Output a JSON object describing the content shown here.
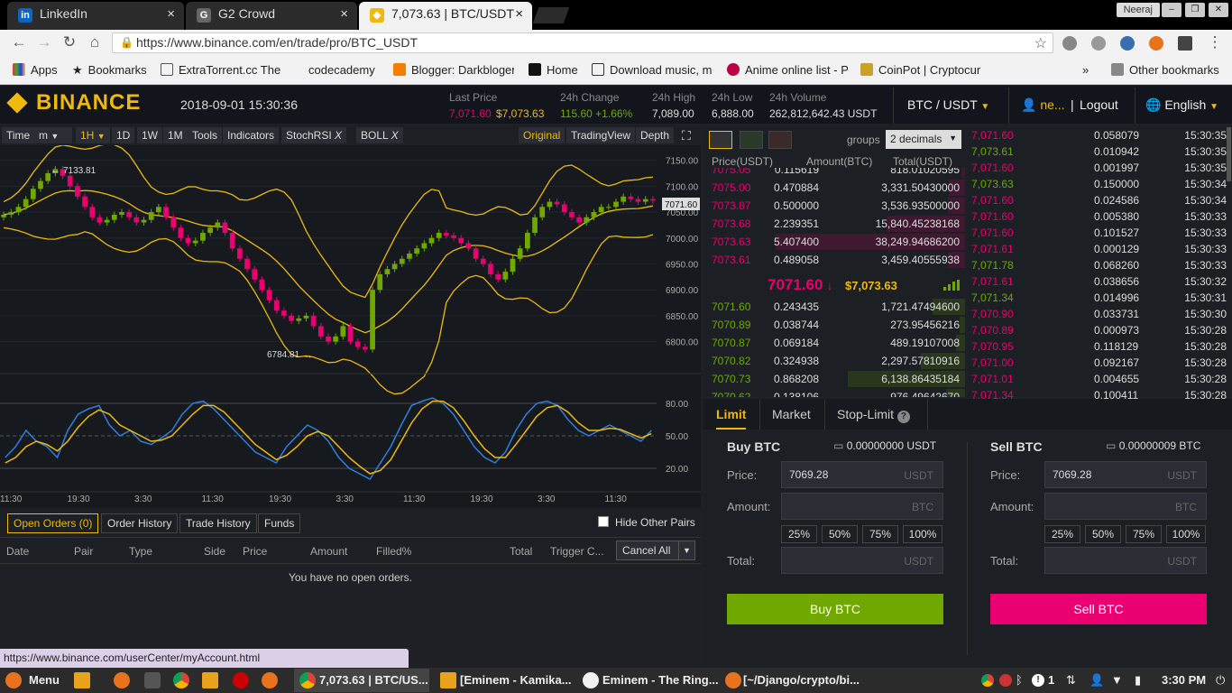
{
  "browser": {
    "tabs": [
      {
        "title": "LinkedIn",
        "icon": "linkedin-icon",
        "color": "#0a66c2"
      },
      {
        "title": "G2 Crowd",
        "icon": "g2-icon",
        "color": "#555"
      },
      {
        "title": "7,073.63 | BTC/USDT",
        "icon": "binance-icon",
        "color": "#f0b90b"
      }
    ],
    "user": "Neeraj",
    "url": "https://www.binance.com/en/trade/pro/BTC_USDT",
    "bookmarks": [
      "Apps",
      "Bookmarks",
      "ExtraTorrent.cc The",
      "codecademy",
      "Blogger: Darkbloger",
      "Home",
      "Download music, m",
      "Anime online list - P",
      "CoinPot | Cryptocur"
    ],
    "other_bookmarks": "Other bookmarks"
  },
  "header": {
    "logo": "BINANCE",
    "datetime": "2018-09-01 15:30:36",
    "last_price_label": "Last Price",
    "last_price": "7,071.60",
    "last_price_usd": "$7,073.63",
    "change_label": "24h Change",
    "change": "115.60 +1.66%",
    "high_label": "24h High",
    "high": "7,089.00",
    "low_label": "24h Low",
    "low": "6,888.00",
    "volume_label": "24h Volume",
    "volume": "262,812,642.43 USDT",
    "pair": "BTC / USDT",
    "user": "ne...",
    "logout": "Logout",
    "language": "English"
  },
  "chart_toolbar": {
    "items": [
      "Time",
      "m",
      "1H",
      "1D",
      "1W",
      "1M",
      "Tools",
      "Indicators",
      "StochRSI",
      "BOLL"
    ],
    "original": "Original",
    "tradingview": "TradingView",
    "depth": "Depth"
  },
  "chart_data": {
    "type": "line",
    "price_ticks": [
      "7150.00",
      "7100.00",
      "7050.00",
      "7000.00",
      "6950.00",
      "6900.00",
      "6850.00",
      "6800.00"
    ],
    "price_tag": "7071.60",
    "high_note": "7133.81",
    "low_note": "6784.81",
    "rsi_ticks": [
      "80.00",
      "50.00",
      "20.00"
    ],
    "time_ticks": [
      "11:30",
      "19:30",
      "3:30",
      "11:30",
      "19:30",
      "3:30",
      "11:30",
      "19:30",
      "3:30",
      "11:30"
    ],
    "close": [
      7045,
      7050,
      7060,
      7075,
      7095,
      7110,
      7125,
      7133,
      7120,
      7100,
      7080,
      7060,
      7040,
      7030,
      7035,
      7045,
      7050,
      7040,
      7030,
      7035,
      7050,
      7060,
      7040,
      7020,
      7000,
      6990,
      6995,
      7010,
      7020,
      7030,
      7010,
      6980,
      6960,
      6940,
      6920,
      6900,
      6880,
      6860,
      6850,
      6840,
      6845,
      6850,
      6830,
      6810,
      6800,
      6810,
      6830,
      6800,
      6790,
      6785,
      6900,
      6930,
      6940,
      6950,
      6960,
      6970,
      6980,
      6990,
      7000,
      7010,
      7005,
      7000,
      6990,
      6980,
      6960,
      6950,
      6930,
      6920,
      6935,
      6960,
      6980,
      7010,
      7040,
      7060,
      7070,
      7065,
      7050,
      7040,
      7030,
      7040,
      7050,
      7060,
      7060,
      7070,
      7080,
      7075,
      7070,
      7075,
      7072
    ],
    "rsi_k": [
      30,
      40,
      55,
      45,
      40,
      30,
      55,
      70,
      75,
      78,
      60,
      50,
      55,
      45,
      42,
      48,
      55,
      70,
      80,
      82,
      75,
      65,
      55,
      45,
      35,
      30,
      25,
      40,
      50,
      60,
      55,
      45,
      30,
      20,
      15,
      10,
      25,
      40,
      60,
      78,
      82,
      85,
      80,
      70,
      55,
      40,
      30,
      25,
      35,
      55,
      70,
      80,
      82,
      78,
      65,
      55,
      50,
      55,
      60,
      55,
      50,
      45,
      55
    ],
    "rsi_d": [
      25,
      30,
      40,
      45,
      42,
      36,
      45,
      58,
      68,
      74,
      70,
      60,
      55,
      50,
      45,
      46,
      50,
      60,
      70,
      78,
      78,
      72,
      62,
      52,
      42,
      35,
      28,
      32,
      40,
      50,
      54,
      50,
      40,
      30,
      22,
      15,
      18,
      28,
      45,
      62,
      75,
      82,
      82,
      76,
      64,
      50,
      38,
      30,
      30,
      42,
      55,
      68,
      76,
      78,
      72,
      62,
      55,
      55,
      57,
      56,
      52,
      48,
      52
    ]
  },
  "orders": {
    "tabs": [
      "Open Orders (0)",
      "Order History",
      "Trade History",
      "Funds"
    ],
    "hide_pairs": "Hide Other Pairs",
    "columns": [
      "Date",
      "Pair",
      "Type",
      "Side",
      "Price",
      "Amount",
      "Filled%",
      "Total",
      "Trigger C..."
    ],
    "cancel_all": "Cancel All",
    "empty": "You have no open orders."
  },
  "status_url": "https://www.binance.com/userCenter/myAccount.html",
  "orderbook": {
    "groups_label": "groups",
    "groups_value": "2 decimals",
    "columns": [
      "Price(USDT)",
      "Amount(BTC)",
      "Total(USDT)"
    ],
    "asks": [
      [
        "7075.05",
        "0.115619",
        "818.01020595"
      ],
      [
        "7075.00",
        "0.470884",
        "3,331.50430000"
      ],
      [
        "7073.87",
        "0.500000",
        "3,536.93500000"
      ],
      [
        "7073.68",
        "2.239351",
        "15,840.45238168"
      ],
      [
        "7073.63",
        "5.407400",
        "38,249.94686200"
      ],
      [
        "7073.61",
        "0.489058",
        "3,459.40555938"
      ]
    ],
    "mid_price": "7071.60",
    "mid_arrow": "↓",
    "mid_usd": "$7,073.63",
    "bids": [
      [
        "7071.60",
        "0.243435",
        "1,721.47494600"
      ],
      [
        "7070.89",
        "0.038744",
        "273.95456216"
      ],
      [
        "7070.87",
        "0.069184",
        "489.19107008"
      ],
      [
        "7070.82",
        "0.324938",
        "2,297.57810916"
      ],
      [
        "7070.73",
        "0.868208",
        "6,138.86435184"
      ],
      [
        "7070.62",
        "0.138106",
        "976.49642670"
      ]
    ]
  },
  "trades": [
    [
      "7,071.60",
      "0.058079",
      "15:30:35",
      "red"
    ],
    [
      "7,073.61",
      "0.010942",
      "15:30:35",
      "green"
    ],
    [
      "7,071.60",
      "0.001997",
      "15:30:35",
      "red"
    ],
    [
      "7,073.63",
      "0.150000",
      "15:30:34",
      "green"
    ],
    [
      "7,071.60",
      "0.024586",
      "15:30:34",
      "red"
    ],
    [
      "7,071.60",
      "0.005380",
      "15:30:33",
      "red"
    ],
    [
      "7,071.60",
      "0.101527",
      "15:30:33",
      "red"
    ],
    [
      "7,071.61",
      "0.000129",
      "15:30:33",
      "red"
    ],
    [
      "7,071.78",
      "0.068260",
      "15:30:33",
      "green"
    ],
    [
      "7,071.61",
      "0.038656",
      "15:30:32",
      "red"
    ],
    [
      "7,071.34",
      "0.014996",
      "15:30:31",
      "green"
    ],
    [
      "7,070.90",
      "0.033731",
      "15:30:30",
      "red"
    ],
    [
      "7,070.89",
      "0.000973",
      "15:30:28",
      "red"
    ],
    [
      "7,070.95",
      "0.118129",
      "15:30:28",
      "red"
    ],
    [
      "7,071.00",
      "0.092167",
      "15:30:28",
      "red"
    ],
    [
      "7,071.01",
      "0.004655",
      "15:30:28",
      "red"
    ],
    [
      "7,071.34",
      "0.100411",
      "15:30:28",
      "red"
    ]
  ],
  "trade_form": {
    "tabs": [
      "Limit",
      "Market",
      "Stop-Limit"
    ],
    "buy": {
      "title": "Buy BTC",
      "balance": "0.00000000 USDT",
      "price_label": "Price:",
      "price": "7069.28",
      "price_unit": "USDT",
      "amount_label": "Amount:",
      "amount_unit": "BTC",
      "total_label": "Total:",
      "total_unit": "USDT",
      "button": "Buy BTC"
    },
    "sell": {
      "title": "Sell BTC",
      "balance": "0.00000009 BTC",
      "price_label": "Price:",
      "price": "7069.28",
      "price_unit": "USDT",
      "amount_label": "Amount:",
      "amount_unit": "BTC",
      "total_label": "Total:",
      "total_unit": "USDT",
      "button": "Sell BTC"
    },
    "percents": [
      "25%",
      "50%",
      "75%",
      "100%"
    ]
  },
  "taskbar": {
    "menu": "Menu",
    "windows": [
      "7,073.63 | BTC/US...",
      "[Eminem - Kamika...",
      "Eminem - The Ring...",
      "[~/Django/crypto/bi..."
    ],
    "notif": "1",
    "clock": "3:30 PM"
  },
  "colors": {
    "accent": "#f0b90b",
    "up": "#70a800",
    "down": "#ea0070",
    "bg": "#1c1f24"
  }
}
